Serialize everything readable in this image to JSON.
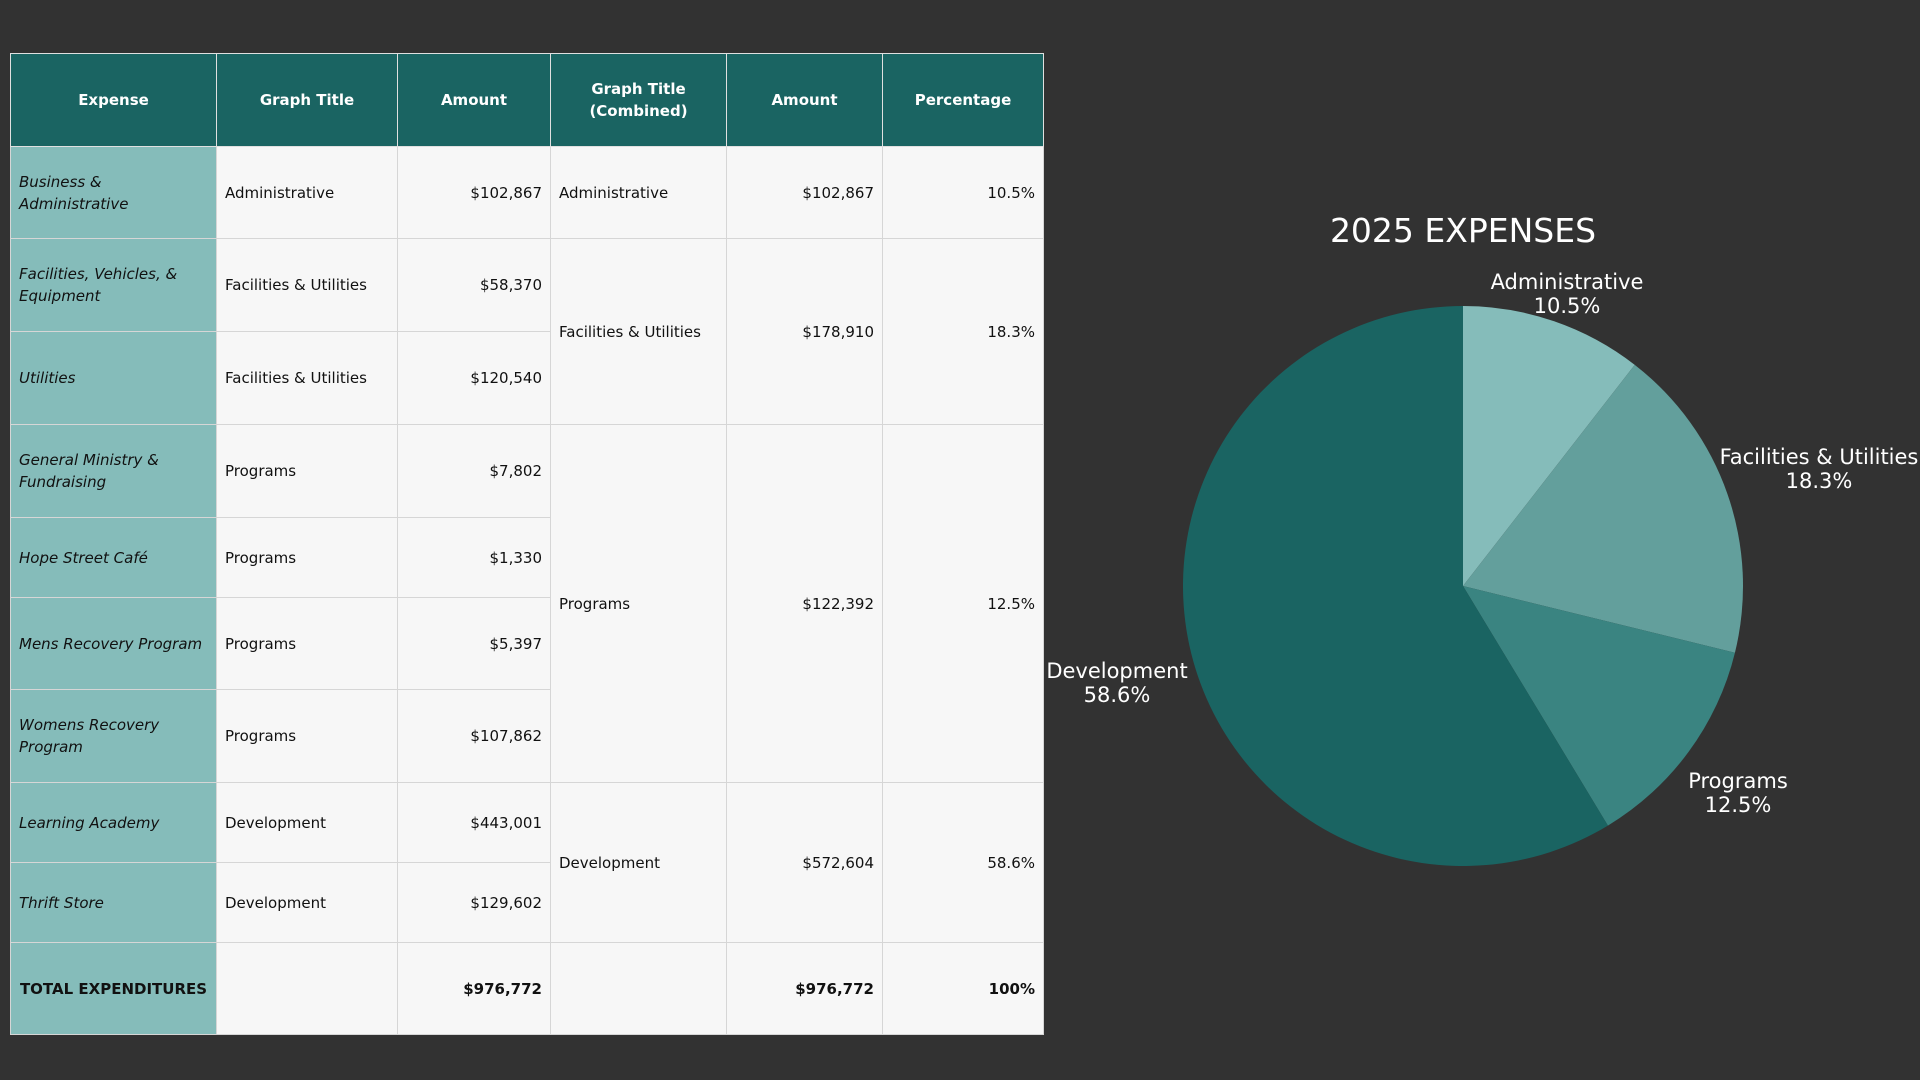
{
  "table": {
    "headers": [
      "Expense",
      "Graph Title",
      "Amount",
      "Graph Title (Combined)",
      "Amount",
      "Percentage"
    ],
    "rows": [
      {
        "expense": "Business & Administrative",
        "graph_title": "Administrative",
        "amount": "$102,867"
      },
      {
        "expense": "Facilities, Vehicles, & Equipment",
        "graph_title": "Facilities & Utilities",
        "amount": "$58,370"
      },
      {
        "expense": "Utilities",
        "graph_title": "Facilities & Utilities",
        "amount": "$120,540"
      },
      {
        "expense": "General Ministry & Fundraising",
        "graph_title": "Programs",
        "amount": "$7,802"
      },
      {
        "expense": "Hope Street Café",
        "graph_title": "Programs",
        "amount": "$1,330"
      },
      {
        "expense": "Mens Recovery Program",
        "graph_title": "Programs",
        "amount": "$5,397"
      },
      {
        "expense": "Womens Recovery Program",
        "graph_title": "Programs",
        "amount": "$107,862"
      },
      {
        "expense": "Learning Academy",
        "graph_title": "Development",
        "amount": "$443,001"
      },
      {
        "expense": "Thrift Store",
        "graph_title": "Development",
        "amount": "$129,602"
      }
    ],
    "combined": [
      {
        "title": "Administrative",
        "amount": "$102,867",
        "percentage": "10.5%"
      },
      {
        "title": "Facilities & Utilities",
        "amount": "$178,910",
        "percentage": "18.3%"
      },
      {
        "title": "Programs",
        "amount": "$122,392",
        "percentage": "12.5%"
      },
      {
        "title": "Development",
        "amount": "$572,604",
        "percentage": "58.6%"
      }
    ],
    "total": {
      "label": "TOTAL EXPENDITURES",
      "amount": "$976,772",
      "combined_amount": "$976,772",
      "percentage": "100%"
    }
  },
  "chart_data": {
    "type": "pie",
    "title": "2025 EXPENSES",
    "categories": [
      "Administrative",
      "Facilities & Utilities",
      "Programs",
      "Development"
    ],
    "values": [
      10.5,
      18.3,
      12.5,
      58.6
    ],
    "value_labels": [
      "10.5%",
      "18.3%",
      "12.5%",
      "58.6%"
    ],
    "colors": [
      "#85bcba",
      "#639f9c",
      "#3a8481",
      "#1a6462"
    ]
  },
  "colors": {
    "background": "#323232",
    "header": "#1a6462",
    "expense_column": "#85bcba",
    "cell": "#f7f7f7"
  }
}
